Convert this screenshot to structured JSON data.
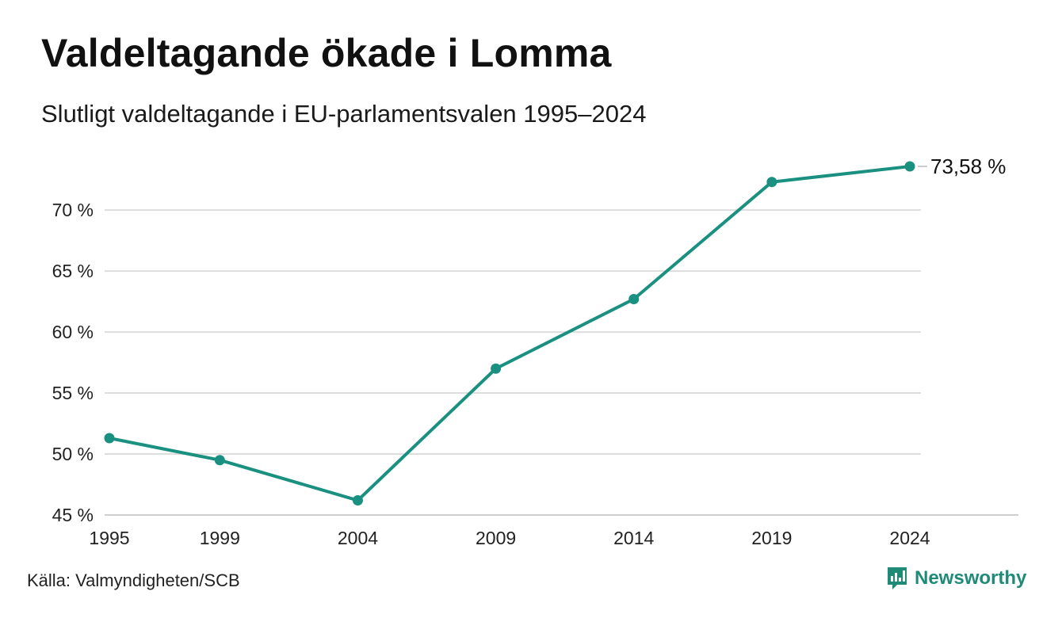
{
  "title": "Valdeltagande ökade i Lomma",
  "subtitle": "Slutligt valdeltagande i EU-parlamentsvalen 1995–2024",
  "source": "Källa: Valmyndigheten/SCB",
  "brand": "Newsworthy",
  "icons": {
    "brand_logo": "bar-chart-speech-bubble-icon"
  },
  "colors": {
    "line": "#1a9080",
    "grid": "#dddddd",
    "brand": "#1f8a78"
  },
  "chart_data": {
    "type": "line",
    "x": [
      1995,
      1999,
      2004,
      2009,
      2014,
      2019,
      2024
    ],
    "y_ticks": [
      45,
      50,
      55,
      60,
      65,
      70
    ],
    "y_tick_labels": [
      "45 %",
      "50 %",
      "55 %",
      "60 %",
      "65 %",
      "70 %"
    ],
    "x_tick_labels": [
      "1995",
      "1999",
      "2004",
      "2009",
      "2014",
      "2019",
      "2024"
    ],
    "ylim": [
      45,
      73.58
    ],
    "grid": true,
    "series": [
      {
        "values": [
          51.3,
          49.5,
          46.2,
          57.0,
          62.7,
          72.3,
          73.58
        ]
      }
    ],
    "end_label": "73,58 %"
  }
}
